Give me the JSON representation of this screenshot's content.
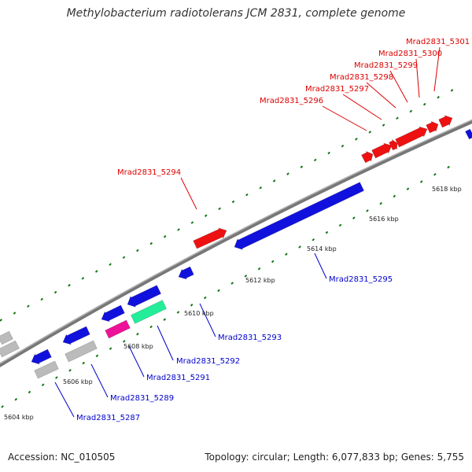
{
  "title": "Methylobacterium radiotolerans JCM 2831, complete genome",
  "footer": {
    "accession": "Accession: NC_010505",
    "topology": "Topology: circular; Length: 6,077,833 bp; Genes: 5,755"
  },
  "colors": {
    "backbone": "#888888",
    "forward_label": "#dd0000",
    "reverse_label": "#0000cc",
    "tick": "#117711",
    "gene_red": "#ee1111",
    "gene_blue": "#1111dd",
    "gene_gray": "#bbbbbb",
    "gene_magenta": "#ee1199",
    "gene_teal": "#22ee99"
  },
  "scale_labels": [
    "5604 kbp",
    "5606 kbp",
    "5608 kbp",
    "5610 kbp",
    "5612 kbp",
    "5614 kbp",
    "5616 kbp",
    "5618 kbp"
  ],
  "forward_genes": [
    "Mrad2831_5294",
    "Mrad2831_5296",
    "Mrad2831_5297",
    "Mrad2831_5298",
    "Mrad2831_5299",
    "Mrad2831_5300",
    "Mrad2831_5301"
  ],
  "reverse_genes": [
    "Mrad2831_5287",
    "Mrad2831_5289",
    "Mrad2831_5291",
    "Mrad2831_5292",
    "Mrad2831_5293",
    "Mrad2831_5295"
  ]
}
